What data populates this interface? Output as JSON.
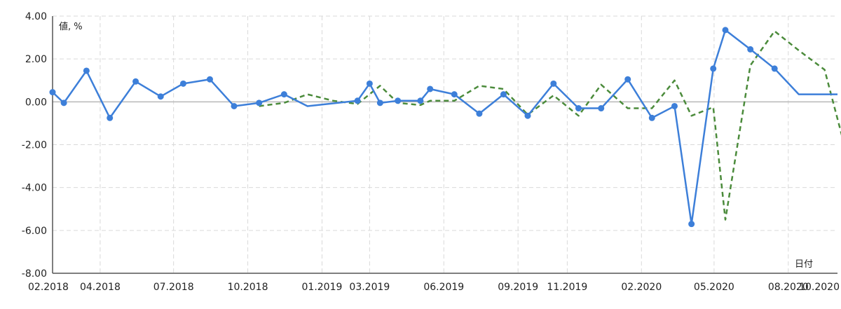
{
  "chart_data": {
    "type": "line",
    "ylabel": "値, %",
    "xlabel": "日付",
    "ylim": [
      -8,
      4
    ],
    "y_ticks": [
      "4.00",
      "2.00",
      "0.00",
      "-2.00",
      "-4.00",
      "-6.00",
      "-8.00"
    ],
    "x_ticks": [
      "02.2018",
      "04.2018",
      "07.2018",
      "10.2018",
      "01.2019",
      "03.2019",
      "06.2019",
      "09.2019",
      "11.2019",
      "02.2020",
      "05.2020",
      "08.2020",
      "10.2020"
    ],
    "grid": true,
    "colors": {
      "actual": "#3d7fd9",
      "forecast": "#4b8b3b",
      "zero_line": "#b8b8b8",
      "grid": "#d9d9d9"
    },
    "series": [
      {
        "style": "dashed",
        "x": [
          "2018-10-15",
          "2018-11-15",
          "2018-12-14",
          "2019-01-15",
          "2019-02-14",
          "2019-03-14",
          "2019-04-05",
          "2019-05-03",
          "2019-05-15",
          "2019-06-14",
          "2019-07-15",
          "2019-08-14",
          "2019-09-13",
          "2019-10-15",
          "2019-11-15",
          "2019-12-13",
          "2020-01-15",
          "2020-02-14",
          "2020-03-13",
          "2020-04-03",
          "2020-04-30",
          "2020-05-15",
          "2020-06-15",
          "2020-07-15",
          "2020-08-14",
          "2020-09-15",
          "2020-10-15",
          "2020-11-13"
        ],
        "y": [
          -0.2,
          -0.05,
          0.35,
          0.05,
          -0.1,
          0.75,
          -0.05,
          -0.15,
          0.05,
          0.05,
          0.75,
          0.6,
          -0.6,
          0.3,
          -0.65,
          0.8,
          -0.3,
          -0.3,
          1.0,
          -0.65,
          -0.25,
          -5.5,
          1.7,
          3.3,
          2.4,
          1.5,
          -2.8,
          -2.8
        ]
      },
      {
        "style": "solid",
        "x": [
          "2018-02-01",
          "2018-02-15",
          "2018-03-15",
          "2018-04-13",
          "2018-05-15",
          "2018-06-15",
          "2018-07-13",
          "2018-08-15",
          "2018-09-14",
          "2018-10-15",
          "2018-11-15",
          "2018-12-14",
          "2019-02-14",
          "2019-03-01",
          "2019-03-14",
          "2019-04-05",
          "2019-05-03",
          "2019-05-15",
          "2019-06-14",
          "2019-07-15",
          "2019-08-14",
          "2019-09-13",
          "2019-10-15",
          "2019-11-15",
          "2019-12-13",
          "2020-01-15",
          "2020-02-14",
          "2020-03-13",
          "2020-04-03",
          "2020-04-30",
          "2020-05-15",
          "2020-06-15",
          "2020-07-15",
          "2020-08-14",
          "2020-09-15",
          "2020-10-01"
        ],
        "y": [
          0.45,
          -0.05,
          1.45,
          -0.75,
          0.95,
          0.25,
          0.85,
          1.05,
          -0.2,
          -0.05,
          0.35,
          -0.2,
          0.05,
          0.85,
          -0.05,
          0.05,
          0.05,
          0.6,
          0.35,
          -0.55,
          0.35,
          -0.65,
          0.85,
          -0.3,
          -0.3,
          1.05,
          -0.75,
          -0.2,
          -5.7,
          1.55,
          3.35,
          2.45,
          1.55,
          0.35,
          0.35,
          0.35
        ],
        "markers": [
          true,
          true,
          true,
          true,
          true,
          true,
          true,
          true,
          true,
          true,
          true,
          false,
          true,
          true,
          true,
          true,
          true,
          true,
          true,
          true,
          true,
          true,
          true,
          true,
          true,
          true,
          true,
          true,
          true,
          true,
          true,
          true,
          true,
          false,
          false,
          false
        ]
      }
    ]
  }
}
